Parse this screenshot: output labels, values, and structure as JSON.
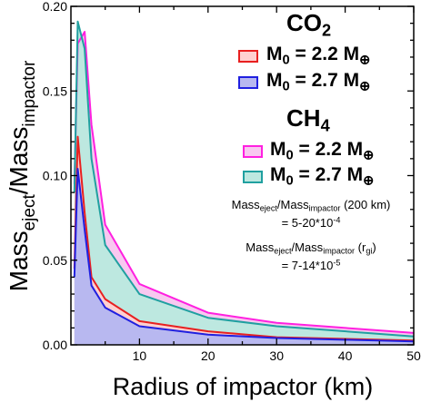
{
  "chart_data": {
    "type": "area",
    "xlabel": "Radius of impactor (km)",
    "ylabel_main": "Mass",
    "ylabel_sub1": "eject",
    "ylabel_sep": "/Mass",
    "ylabel_sub2": "impactor",
    "xlim": [
      0,
      50
    ],
    "ylim": [
      0,
      0.2
    ],
    "xticks": [
      10,
      20,
      30,
      40,
      50
    ],
    "xtick_labels": [
      "10",
      "20",
      "30",
      "40",
      "50"
    ],
    "yticks": [
      0.0,
      0.05,
      0.1,
      0.15,
      0.2
    ],
    "ytick_labels": [
      "0.00",
      "0.05",
      "0.10",
      "0.15",
      "0.20"
    ],
    "grid": false,
    "series": [
      {
        "name": "CO2 M0 = 2.2 M⊕",
        "color": "#e82020",
        "fill": "#ffd0d0",
        "x": [
          0.5,
          1,
          2,
          3,
          5,
          10,
          20,
          30,
          50
        ],
        "y": [
          0.045,
          0.123,
          0.078,
          0.04,
          0.027,
          0.014,
          0.008,
          0.0045,
          0.0025
        ]
      },
      {
        "name": "CO2 M0 = 2.7 M⊕",
        "color": "#2020e0",
        "fill": "#b8b8f0",
        "x": [
          0.5,
          1,
          2,
          3,
          5,
          10,
          20,
          30,
          50
        ],
        "y": [
          0.04,
          0.104,
          0.068,
          0.035,
          0.022,
          0.011,
          0.006,
          0.004,
          0.002
        ]
      },
      {
        "name": "CH4 M0 = 2.2 M⊕",
        "color": "#ff20e0",
        "fill": "#f8c8f0",
        "x": [
          0.5,
          1,
          2,
          3,
          5,
          10,
          20,
          30,
          50
        ],
        "y": [
          0.095,
          0.178,
          0.185,
          0.13,
          0.071,
          0.036,
          0.019,
          0.013,
          0.007
        ]
      },
      {
        "name": "CH4 M0 = 2.7 M⊕",
        "color": "#20a0a0",
        "fill": "#bde8e0",
        "x": [
          0.5,
          1,
          2,
          3,
          5,
          10,
          20,
          30,
          50
        ],
        "y": [
          0.09,
          0.191,
          0.175,
          0.11,
          0.059,
          0.03,
          0.016,
          0.011,
          0.005
        ]
      }
    ]
  },
  "legend": {
    "co2_title": "CO",
    "co2_sub": "2",
    "ch4_title": "CH",
    "ch4_sub": "4",
    "m_prefix": "M",
    "m_sub": "0",
    "m_22": " = 2.2 M",
    "m_27": " = 2.7 M",
    "earth_symbol": "⊕"
  },
  "annotations": {
    "a1_mass": "Mass",
    "a1_eject": "eject",
    "a1_sep": "/Mass",
    "a1_imp": "impactor",
    "a1_tail": " (200 km)",
    "a1_value": "= 5-20*10",
    "a1_exp": "-4",
    "a2_mass": "Mass",
    "a2_eject": "eject",
    "a2_sep": "/Mass",
    "a2_imp": "impactor",
    "a2_tail": " (r",
    "a2_rsub": "gi",
    "a2_close": ")",
    "a2_value": "= 7-14*10",
    "a2_exp": "-5"
  },
  "colors": {
    "co2_22_edge": "#e82020",
    "co2_22_fill": "#ffd0d0",
    "co2_27_edge": "#2020e0",
    "co2_27_fill": "#b8b8f0",
    "ch4_22_edge": "#ff20e0",
    "ch4_22_fill": "#f8c8f0",
    "ch4_27_edge": "#20a0a0",
    "ch4_27_fill": "#bde8e0"
  }
}
